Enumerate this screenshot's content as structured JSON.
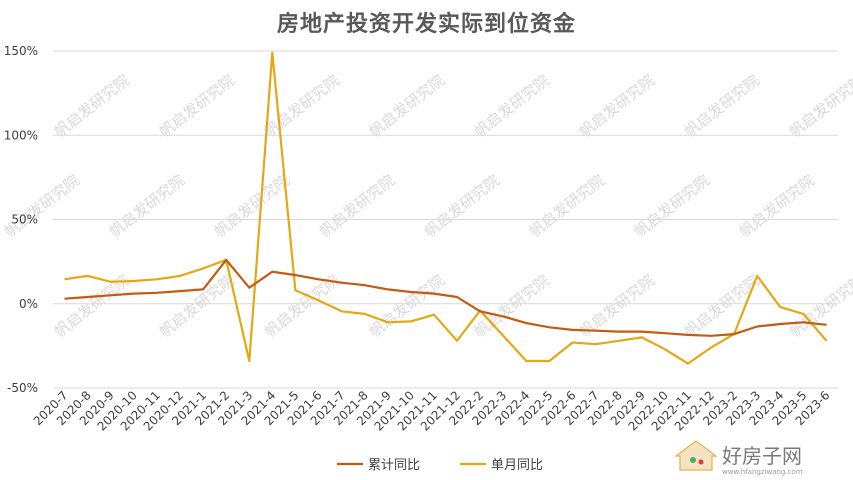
{
  "chart_data": {
    "type": "line",
    "title": "房地产投资开发实际到位资金",
    "categories": [
      "2020-7",
      "2020-8",
      "2020-9",
      "2020-10",
      "2020-11",
      "2020-12",
      "2021-1",
      "2021-2",
      "2021-3",
      "2021-4",
      "2021-5",
      "2021-6",
      "2021-7",
      "2021-8",
      "2021-9",
      "2021-10",
      "2021-11",
      "2021-12",
      "2022-2",
      "2022-3",
      "2022-4",
      "2022-5",
      "2022-6",
      "2022-7",
      "2022-8",
      "2022-9",
      "2022-10",
      "2022-11",
      "2022-12",
      "2023-2",
      "2023-3",
      "2023-4",
      "2023-5",
      "2023-6"
    ],
    "y_ticks": [
      "-50%",
      "0%",
      "50%",
      "100%",
      "150%"
    ],
    "y_tick_values": [
      -50,
      0,
      50,
      100,
      150
    ],
    "ylim": [
      -50,
      150
    ],
    "grid": true,
    "legend_position": "bottom",
    "series": [
      {
        "name": "累计同比",
        "color": "#c55a11",
        "values": [
          3,
          4,
          5,
          6,
          6.5,
          7.5,
          8.5,
          26,
          9.5,
          19,
          17,
          14.5,
          12.5,
          11,
          8.5,
          7,
          6,
          4,
          -4.5,
          -7.5,
          -11.5,
          -14,
          -15.5,
          -16,
          -16.5,
          -16.5,
          -17.5,
          -18.5,
          -19,
          -18,
          -13.5,
          -12,
          -11,
          -12.5
        ]
      },
      {
        "name": "单月同比",
        "color": "#e7a712",
        "values": [
          14.5,
          16.5,
          13,
          13.5,
          14.5,
          16.5,
          21,
          26,
          -34,
          149,
          8,
          2,
          -4.5,
          -6,
          -11,
          -10.5,
          -6.5,
          -22,
          -4,
          -19,
          -34,
          -34,
          -23,
          -24,
          -22,
          -20,
          -27,
          -35.5,
          -26,
          -18,
          16.5,
          -2,
          -6,
          -22
        ]
      }
    ]
  },
  "watermark": {
    "text": "帆启发研究院"
  },
  "site_logo": {
    "text": "好房子网",
    "url_text": "www.hfangziwang.com"
  }
}
